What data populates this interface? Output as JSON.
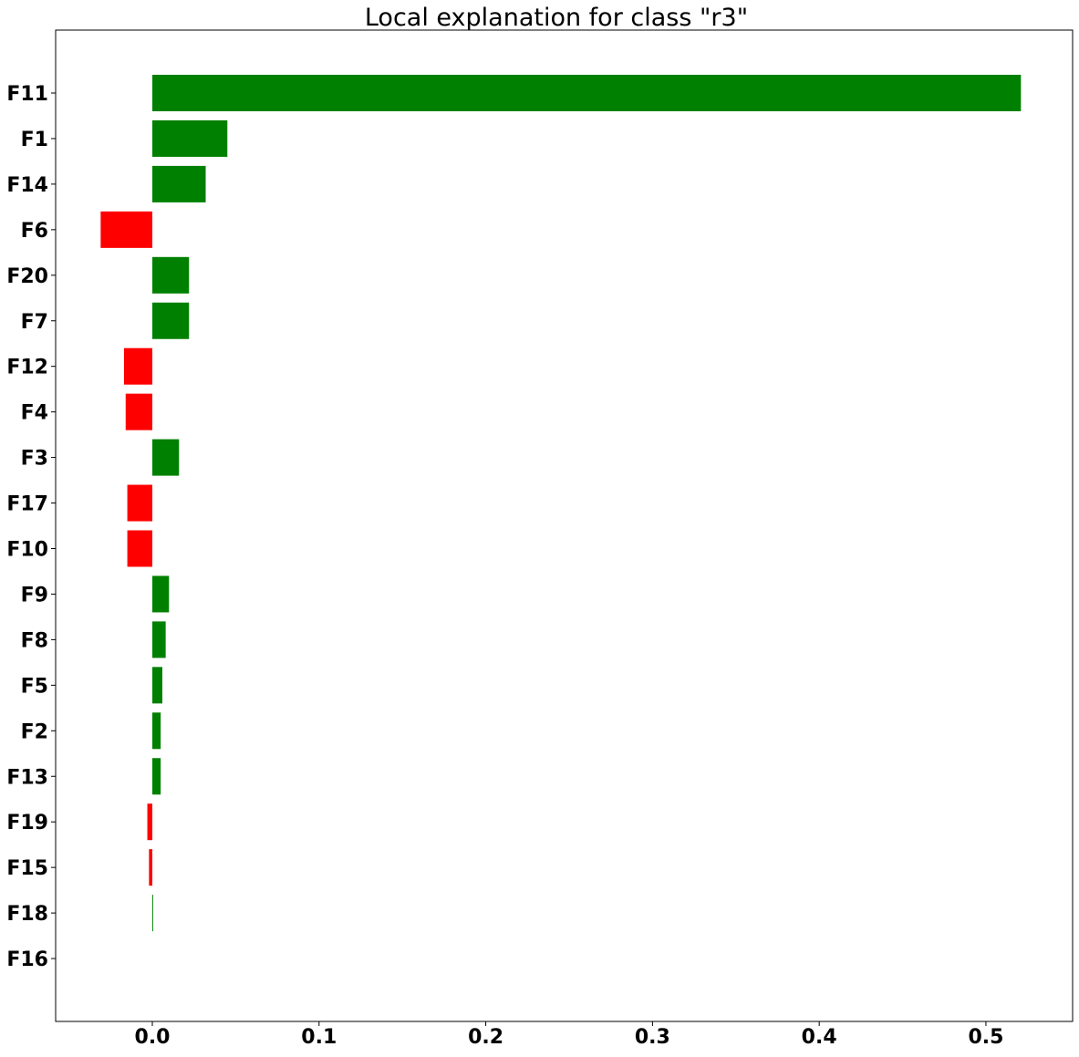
{
  "chart_data": {
    "type": "bar",
    "orientation": "horizontal",
    "title": "Local explanation for class \"r3\"",
    "xlabel": "",
    "ylabel": "",
    "xlim": [
      -0.058,
      0.552
    ],
    "grid": false,
    "x_ticks": [
      {
        "value": 0.0,
        "label": "0.0"
      },
      {
        "value": 0.1,
        "label": "0.1"
      },
      {
        "value": 0.2,
        "label": "0.2"
      },
      {
        "value": 0.3,
        "label": "0.3"
      },
      {
        "value": 0.4,
        "label": "0.4"
      },
      {
        "value": 0.5,
        "label": "0.5"
      }
    ],
    "categories": [
      "F11",
      "F1",
      "F14",
      "F6",
      "F20",
      "F7",
      "F12",
      "F4",
      "F3",
      "F17",
      "F10",
      "F9",
      "F8",
      "F5",
      "F2",
      "F13",
      "F19",
      "F15",
      "F18",
      "F16"
    ],
    "values": [
      0.521,
      0.045,
      0.032,
      -0.031,
      0.022,
      0.022,
      -0.017,
      -0.016,
      0.016,
      -0.015,
      -0.015,
      0.01,
      0.008,
      0.006,
      0.005,
      0.005,
      -0.003,
      -0.002,
      0.0005,
      0.0
    ],
    "colors": {
      "positive": "#008000",
      "negative": "#ff0000"
    }
  }
}
